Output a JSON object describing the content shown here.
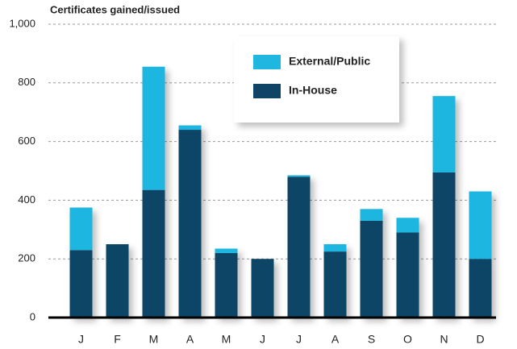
{
  "chart_data": {
    "type": "bar",
    "stacked": true,
    "title": "Certificates gained/issued",
    "categories": [
      "J",
      "F",
      "M",
      "A",
      "M",
      "J",
      "J",
      "A",
      "S",
      "O",
      "N",
      "D"
    ],
    "series": [
      {
        "name": "In-House",
        "color": "#0f4466",
        "values": [
          230,
          250,
          435,
          640,
          220,
          200,
          480,
          225,
          330,
          290,
          495,
          200
        ]
      },
      {
        "name": "External/Public",
        "color": "#1fb6e0",
        "values": [
          145,
          0,
          420,
          15,
          15,
          0,
          5,
          25,
          40,
          50,
          260,
          230
        ]
      }
    ],
    "ylim": [
      0,
      1000
    ],
    "yticks": [
      0,
      200,
      400,
      600,
      800,
      {
        "value": 1000,
        "label": "1,000"
      }
    ],
    "grid": true,
    "legend": "top"
  }
}
